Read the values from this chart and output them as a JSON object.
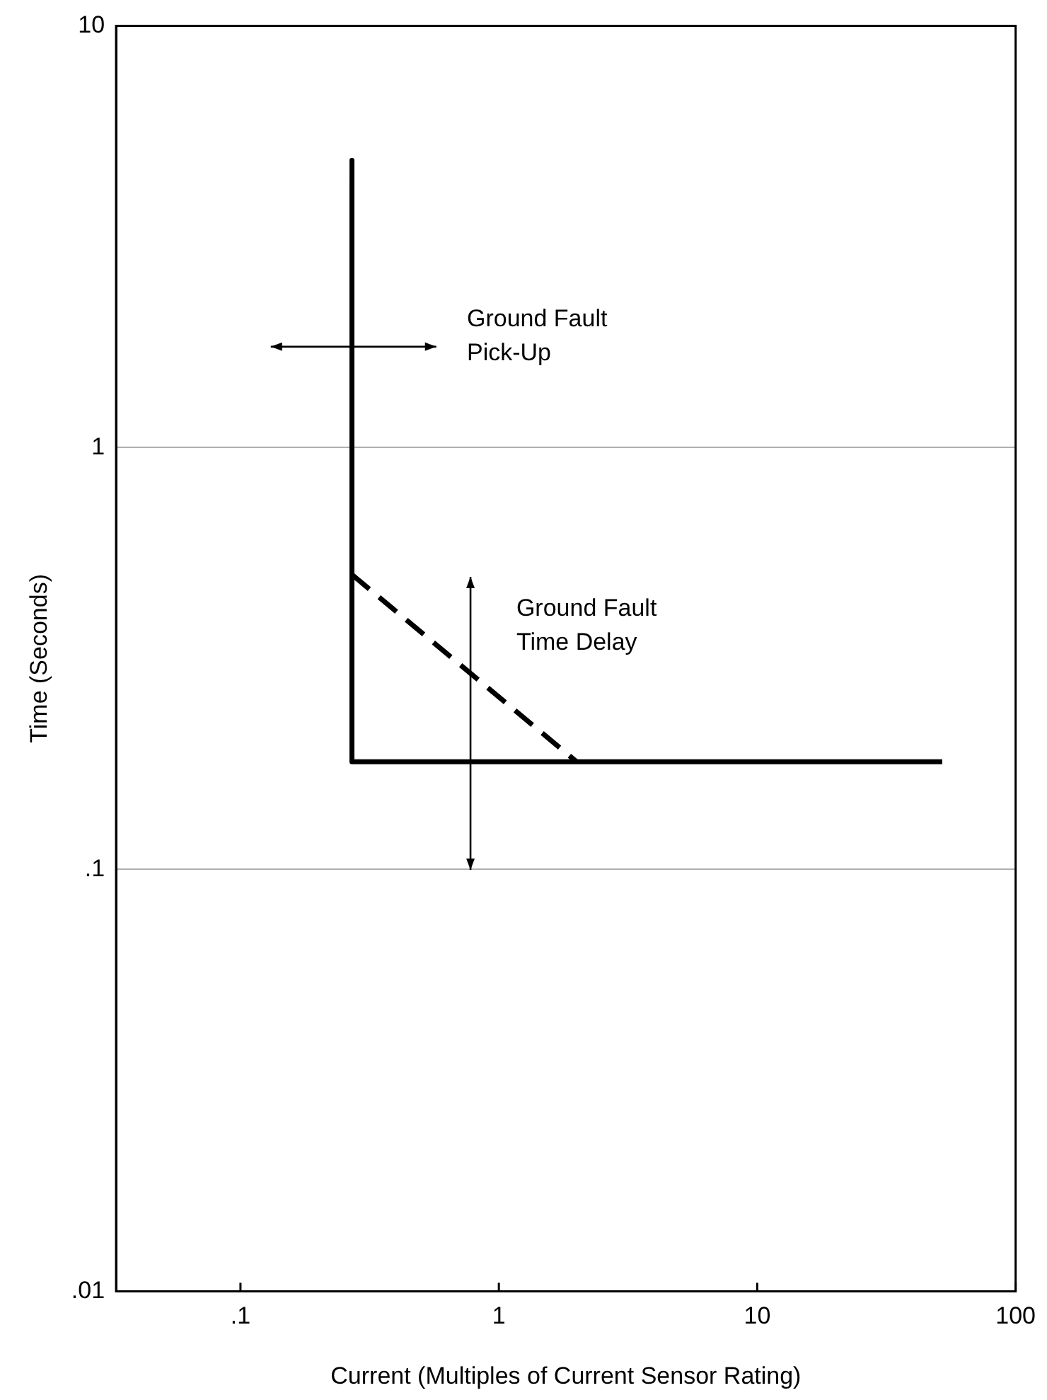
{
  "chart_data": {
    "type": "line",
    "xlabel": "Current (Multiples of Current Sensor Rating)",
    "ylabel": "Time (Seconds)",
    "log": "xy",
    "xlim": [
      0.033,
      100
    ],
    "ylim": [
      0.01,
      10
    ],
    "xticks": [
      {
        "value": 0.1,
        "label": ".1"
      },
      1,
      10,
      100
    ],
    "yticks": [
      {
        "value": 0.01,
        "label": ".01"
      },
      {
        "value": 0.1,
        "label": ".1"
      },
      1,
      10
    ],
    "grid": "y",
    "legend": false,
    "marker": "none",
    "series": [
      {
        "color": "#000000",
        "line_style": "solid",
        "x": [
          0.27,
          0.27,
          52
        ],
        "values": [
          4.8,
          0.18,
          0.18
        ]
      },
      {
        "color": "#000000",
        "line_style": "dashed",
        "x": [
          0.27,
          2
        ],
        "values": [
          0.5,
          0.18
        ]
      }
    ],
    "annotations": [
      "Ground Fault\nPick-Up",
      "Ground Fault\nTime Delay"
    ]
  }
}
